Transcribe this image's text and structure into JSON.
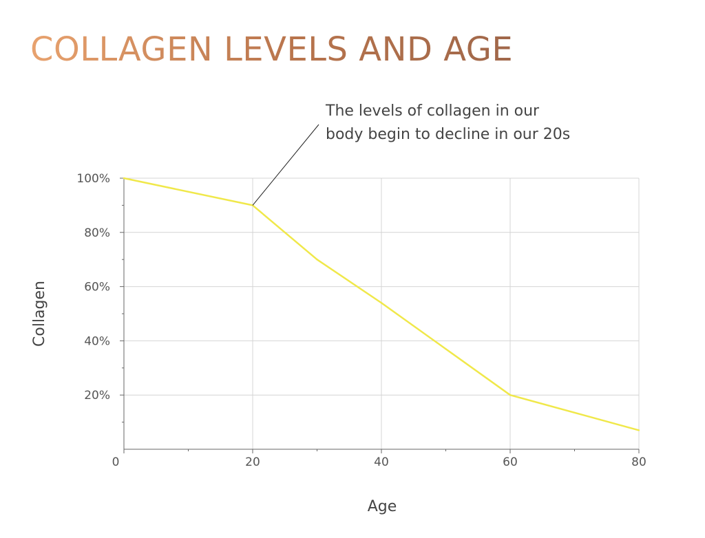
{
  "slide": {
    "title": "COLLAGEN LEVELS AND AGE"
  },
  "colors": {
    "line": "#f0e84a",
    "grid": "#d4d4d4",
    "axis": "#666666",
    "text": "#444444"
  },
  "chart_data": {
    "type": "line",
    "title": "COLLAGEN LEVELS AND AGE",
    "xlabel": "Age",
    "ylabel": "Collagen",
    "xlim": [
      0,
      80
    ],
    "ylim": [
      0,
      100
    ],
    "x_ticks": [
      "0",
      "20",
      "40",
      "60",
      "80"
    ],
    "y_ticks": [
      "20%",
      "40%",
      "60%",
      "80%",
      "100%"
    ],
    "grid": true,
    "series": [
      {
        "x": [
          0,
          20,
          30,
          40,
          50,
          60,
          70,
          80
        ],
        "y": [
          100,
          90,
          70,
          54,
          37,
          20,
          13.5,
          7
        ]
      }
    ],
    "annotation": {
      "lines": [
        "The levels of collagen in our",
        "body begin to decline in our 20s"
      ],
      "point": {
        "x": 20,
        "y": 90
      }
    }
  }
}
